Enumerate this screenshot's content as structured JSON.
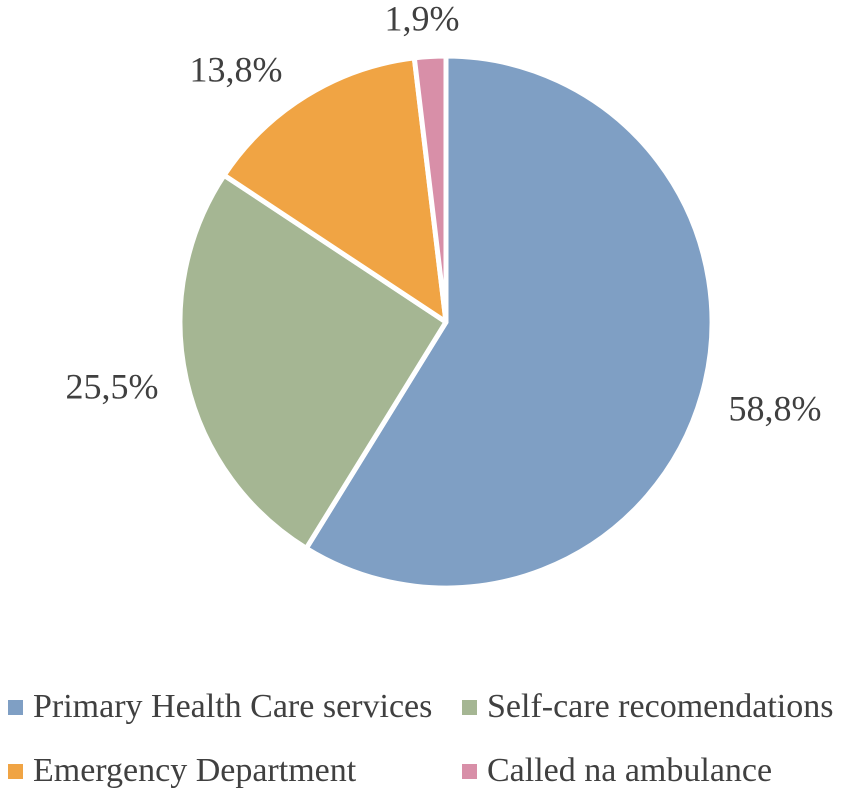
{
  "chart_data": {
    "type": "pie",
    "title": "",
    "categories": [
      "Primary Health Care services",
      "Self-care recomendations",
      "Emergency Department",
      "Called na ambulance"
    ],
    "values": [
      58.8,
      25.5,
      13.8,
      1.9
    ],
    "value_labels": [
      "58,8%",
      "25,5%",
      "13,8%",
      "1,9%"
    ],
    "colors": [
      "#7f9fc4",
      "#a5b693",
      "#f0a444",
      "#d88fa8"
    ],
    "start_angle_deg": 0,
    "direction": "clockwise",
    "legend_position": "bottom"
  },
  "legend": {
    "items": [
      {
        "label": "Primary Health Care services",
        "color": "#7f9fc4"
      },
      {
        "label": "Self-care recomendations",
        "color": "#a5b693"
      },
      {
        "label": "Emergency Department",
        "color": "#f0a444"
      },
      {
        "label": "Called na ambulance",
        "color": "#d88fa8"
      }
    ]
  }
}
